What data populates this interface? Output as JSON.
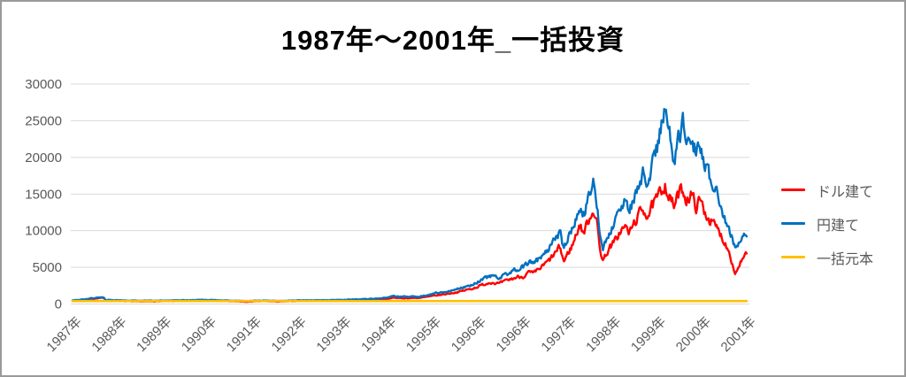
{
  "chart_data": {
    "type": "line",
    "title": "1987年～2001年_一括投資",
    "xlabel": "",
    "ylabel": "",
    "ylim": [
      0,
      30000
    ],
    "y_ticks": [
      0,
      5000,
      10000,
      15000,
      20000,
      25000,
      30000
    ],
    "x_tick_labels": [
      "1987年",
      "1988年",
      "1989年",
      "1990年",
      "1991年",
      "1992年",
      "1993年",
      "1994年",
      "1995年",
      "1996年",
      "1996年",
      "1997年",
      "1998年",
      "1999年",
      "2000年",
      "2001年"
    ],
    "grid": "horizontal",
    "legend_position": "right",
    "colors": {
      "grid": "#d9d9d9",
      "axis_text": "#595959",
      "frame": "#9a9a9a"
    },
    "legend": [
      {
        "name": "ドル建て",
        "color": "#FF0000"
      },
      {
        "name": "円建て",
        "color": "#0070C0"
      },
      {
        "name": "一括元本",
        "color": "#FFC000"
      }
    ],
    "noise": {
      "seed": 7,
      "correlation": 0.5
    },
    "series": [
      {
        "name": "ドル建て",
        "color": "#FF0000",
        "width": 2.4,
        "volatility": 0.055,
        "points": [
          [
            0.0,
            470
          ],
          [
            0.01,
            520
          ],
          [
            0.022,
            640
          ],
          [
            0.032,
            740
          ],
          [
            0.042,
            820
          ],
          [
            0.046,
            800
          ],
          [
            0.049,
            440
          ],
          [
            0.055,
            470
          ],
          [
            0.067,
            420
          ],
          [
            0.08,
            375
          ],
          [
            0.1,
            340
          ],
          [
            0.125,
            360
          ],
          [
            0.15,
            395
          ],
          [
            0.175,
            430
          ],
          [
            0.195,
            470
          ],
          [
            0.215,
            415
          ],
          [
            0.24,
            350
          ],
          [
            0.258,
            305
          ],
          [
            0.27,
            355
          ],
          [
            0.285,
            390
          ],
          [
            0.303,
            330
          ],
          [
            0.32,
            365
          ],
          [
            0.335,
            405
          ],
          [
            0.36,
            415
          ],
          [
            0.385,
            445
          ],
          [
            0.41,
            490
          ],
          [
            0.435,
            550
          ],
          [
            0.455,
            630
          ],
          [
            0.468,
            710
          ],
          [
            0.474,
            890
          ],
          [
            0.483,
            780
          ],
          [
            0.5,
            810
          ],
          [
            0.515,
            850
          ],
          [
            0.533,
            1090
          ],
          [
            0.55,
            1340
          ],
          [
            0.57,
            1640
          ],
          [
            0.59,
            2090
          ],
          [
            0.605,
            2580
          ],
          [
            0.618,
            3000
          ],
          [
            0.63,
            2760
          ],
          [
            0.645,
            3300
          ],
          [
            0.658,
            3700
          ],
          [
            0.667,
            3800
          ],
          [
            0.674,
            4300
          ],
          [
            0.681,
            4100
          ],
          [
            0.694,
            5100
          ],
          [
            0.704,
            5900
          ],
          [
            0.714,
            7000
          ],
          [
            0.72,
            7700
          ],
          [
            0.726,
            5800
          ],
          [
            0.732,
            6900
          ],
          [
            0.74,
            8300
          ],
          [
            0.749,
            10900
          ],
          [
            0.755,
            9700
          ],
          [
            0.763,
            11600
          ],
          [
            0.77,
            13100
          ],
          [
            0.775,
            10900
          ],
          [
            0.779,
            7400
          ],
          [
            0.784,
            6000
          ],
          [
            0.792,
            7500
          ],
          [
            0.8,
            8300
          ],
          [
            0.809,
            9900
          ],
          [
            0.816,
            10500
          ],
          [
            0.823,
            9700
          ],
          [
            0.833,
            11600
          ],
          [
            0.843,
            13000
          ],
          [
            0.85,
            12200
          ],
          [
            0.858,
            13400
          ],
          [
            0.866,
            14600
          ],
          [
            0.871,
            15600
          ],
          [
            0.875,
            16700
          ],
          [
            0.88,
            15000
          ],
          [
            0.885,
            13900
          ],
          [
            0.889,
            13300
          ],
          [
            0.895,
            14800
          ],
          [
            0.901,
            15600
          ],
          [
            0.907,
            14400
          ],
          [
            0.914,
            14900
          ],
          [
            0.921,
            13300
          ],
          [
            0.927,
            14100
          ],
          [
            0.934,
            12600
          ],
          [
            0.941,
            11600
          ],
          [
            0.949,
            10600
          ],
          [
            0.957,
            9600
          ],
          [
            0.964,
            8400
          ],
          [
            0.971,
            7000
          ],
          [
            0.979,
            4100
          ],
          [
            0.987,
            5700
          ],
          [
            0.996,
            6800
          ]
        ]
      },
      {
        "name": "円建て",
        "color": "#0070C0",
        "width": 2.4,
        "volatility": 0.055,
        "points": [
          [
            0.0,
            500
          ],
          [
            0.01,
            560
          ],
          [
            0.022,
            700
          ],
          [
            0.032,
            820
          ],
          [
            0.042,
            900
          ],
          [
            0.046,
            880
          ],
          [
            0.049,
            520
          ],
          [
            0.055,
            560
          ],
          [
            0.067,
            520
          ],
          [
            0.08,
            470
          ],
          [
            0.1,
            440
          ],
          [
            0.125,
            465
          ],
          [
            0.15,
            495
          ],
          [
            0.175,
            530
          ],
          [
            0.195,
            565
          ],
          [
            0.215,
            510
          ],
          [
            0.24,
            445
          ],
          [
            0.258,
            400
          ],
          [
            0.27,
            450
          ],
          [
            0.285,
            480
          ],
          [
            0.303,
            425
          ],
          [
            0.32,
            465
          ],
          [
            0.335,
            500
          ],
          [
            0.36,
            510
          ],
          [
            0.385,
            545
          ],
          [
            0.41,
            600
          ],
          [
            0.435,
            680
          ],
          [
            0.455,
            790
          ],
          [
            0.468,
            880
          ],
          [
            0.474,
            1130
          ],
          [
            0.483,
            990
          ],
          [
            0.5,
            1020
          ],
          [
            0.515,
            1070
          ],
          [
            0.533,
            1380
          ],
          [
            0.55,
            1680
          ],
          [
            0.57,
            2080
          ],
          [
            0.59,
            2680
          ],
          [
            0.605,
            3280
          ],
          [
            0.618,
            3800
          ],
          [
            0.63,
            3500
          ],
          [
            0.645,
            4200
          ],
          [
            0.658,
            4800
          ],
          [
            0.667,
            5100
          ],
          [
            0.674,
            5700
          ],
          [
            0.681,
            5400
          ],
          [
            0.694,
            6600
          ],
          [
            0.704,
            7600
          ],
          [
            0.714,
            8900
          ],
          [
            0.72,
            9800
          ],
          [
            0.726,
            7500
          ],
          [
            0.732,
            8800
          ],
          [
            0.74,
            10500
          ],
          [
            0.749,
            13600
          ],
          [
            0.755,
            12200
          ],
          [
            0.763,
            14500
          ],
          [
            0.77,
            16300
          ],
          [
            0.775,
            13500
          ],
          [
            0.779,
            9200
          ],
          [
            0.784,
            7700
          ],
          [
            0.792,
            9600
          ],
          [
            0.8,
            10800
          ],
          [
            0.809,
            12900
          ],
          [
            0.816,
            13800
          ],
          [
            0.823,
            12800
          ],
          [
            0.833,
            15500
          ],
          [
            0.843,
            17800
          ],
          [
            0.85,
            16800
          ],
          [
            0.858,
            19500
          ],
          [
            0.866,
            22500
          ],
          [
            0.871,
            24500
          ],
          [
            0.875,
            26900
          ],
          [
            0.88,
            24000
          ],
          [
            0.885,
            21200
          ],
          [
            0.889,
            19600
          ],
          [
            0.895,
            23000
          ],
          [
            0.901,
            24800
          ],
          [
            0.907,
            22600
          ],
          [
            0.914,
            23600
          ],
          [
            0.921,
            20600
          ],
          [
            0.927,
            21800
          ],
          [
            0.934,
            19000
          ],
          [
            0.941,
            17200
          ],
          [
            0.949,
            15500
          ],
          [
            0.957,
            13600
          ],
          [
            0.964,
            11600
          ],
          [
            0.971,
            9800
          ],
          [
            0.979,
            7800
          ],
          [
            0.987,
            8800
          ],
          [
            0.996,
            9300
          ]
        ]
      },
      {
        "name": "一括元本",
        "color": "#FFC000",
        "width": 2.6,
        "volatility": 0,
        "points": [
          [
            0.0,
            400
          ],
          [
            0.996,
            400
          ]
        ]
      }
    ]
  }
}
